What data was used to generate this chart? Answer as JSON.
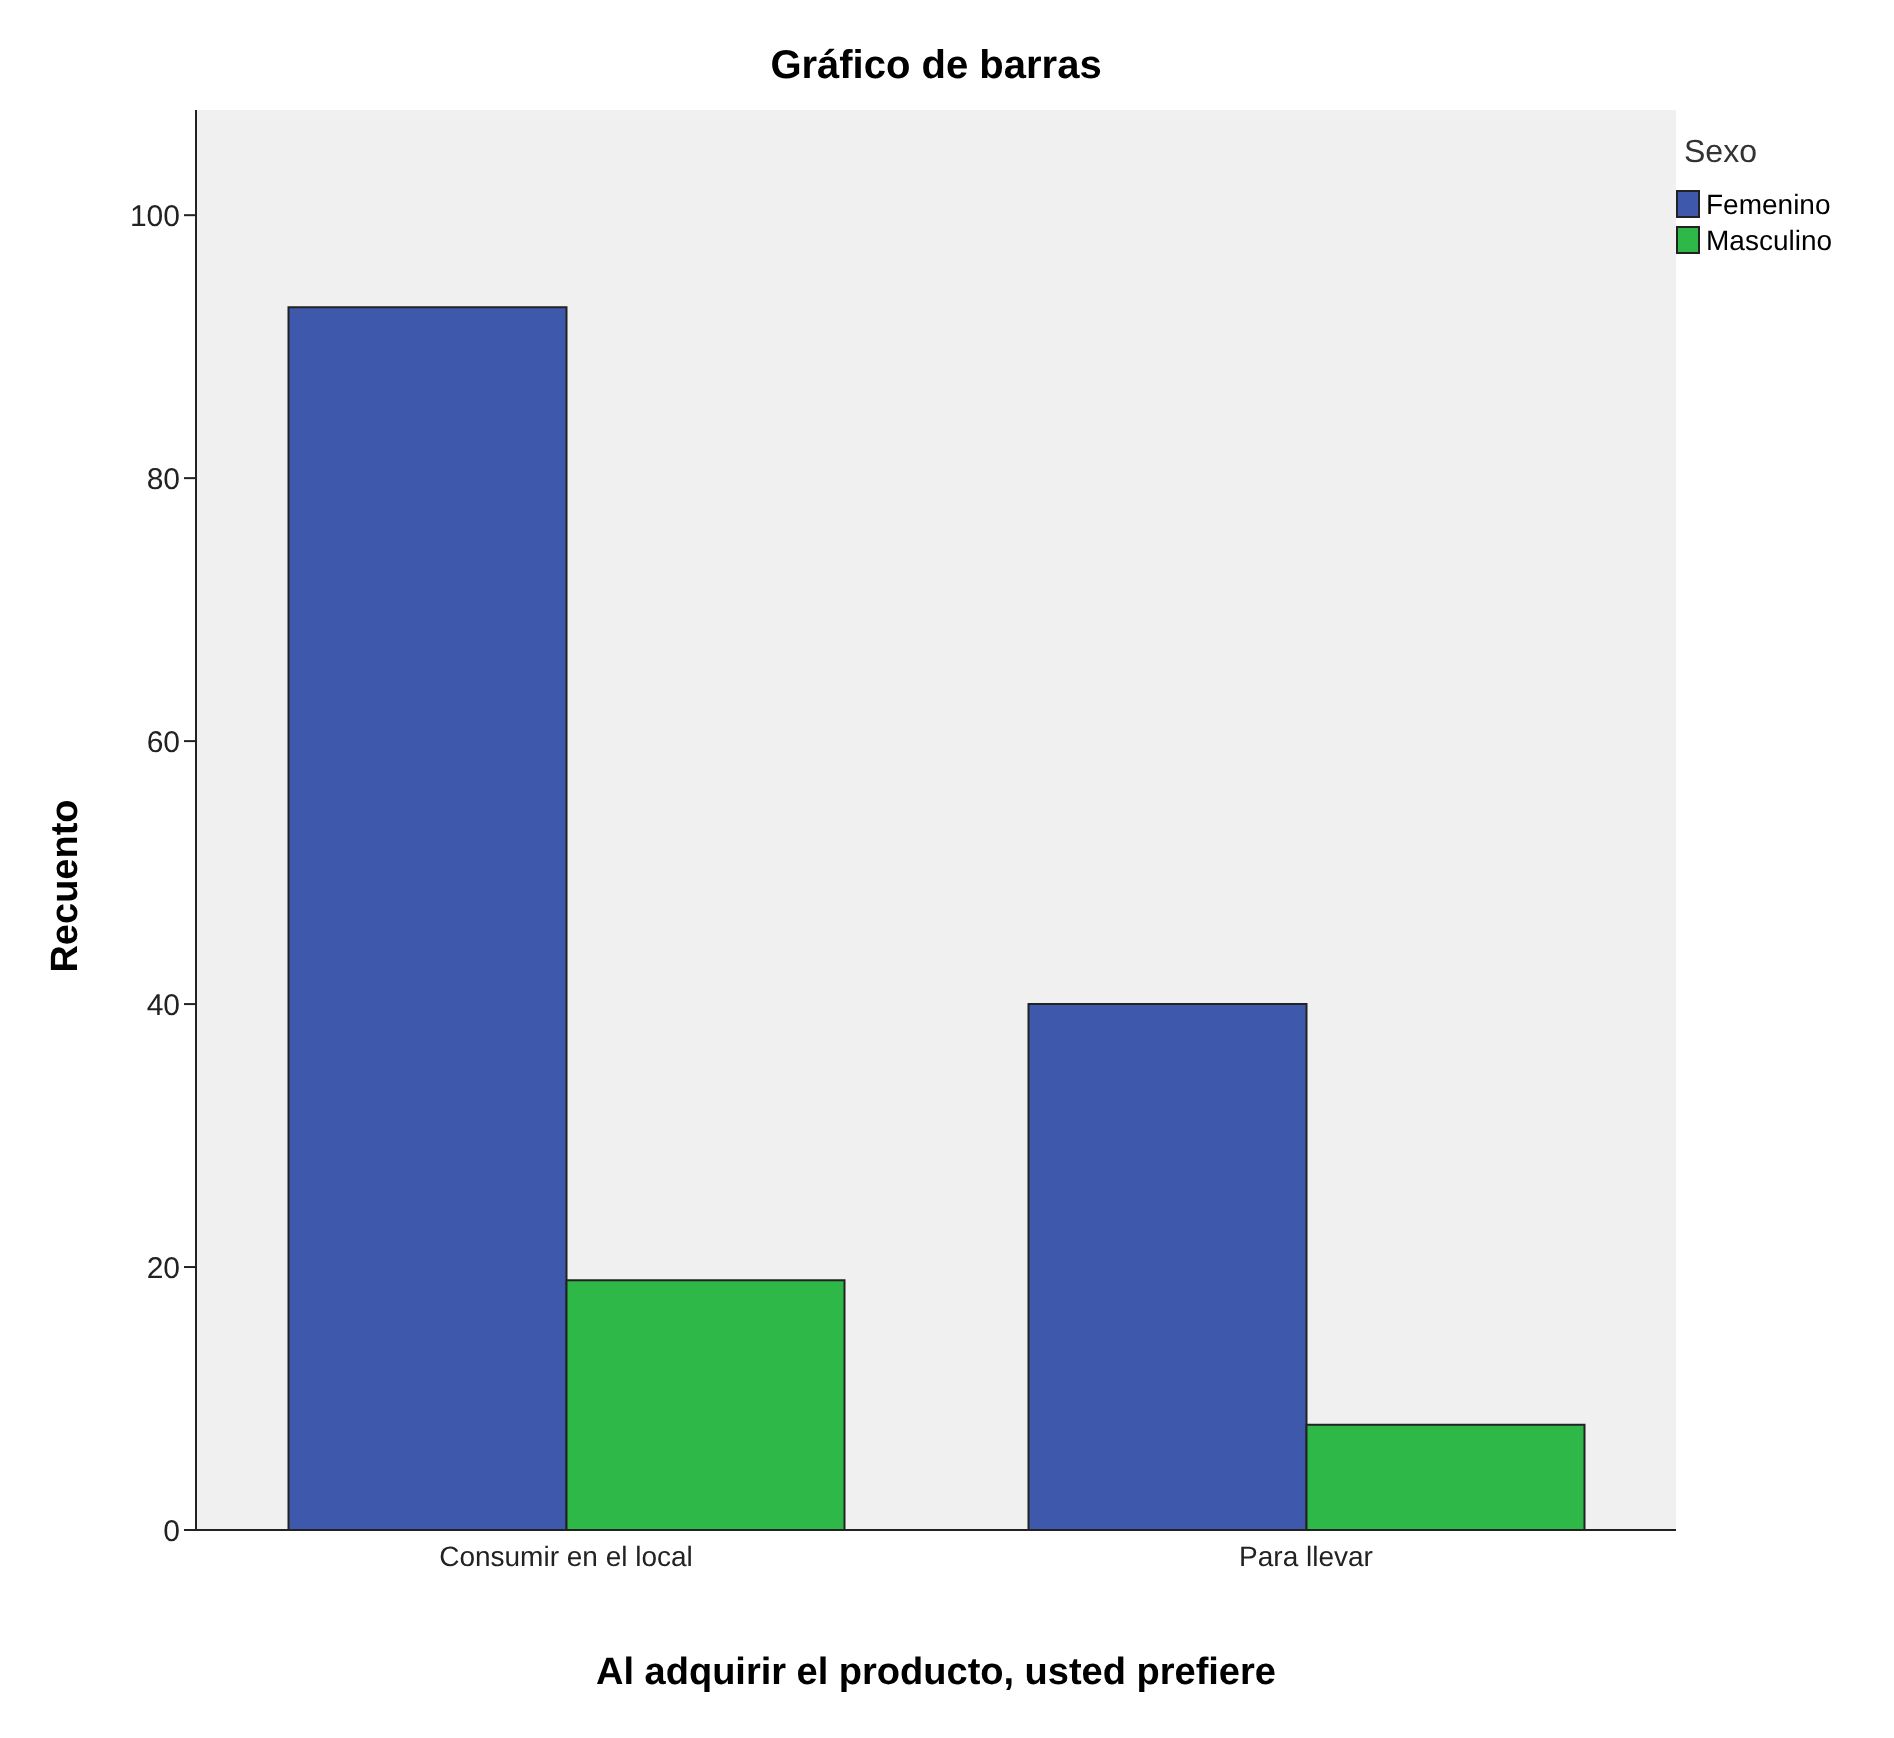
{
  "chart_data": {
    "type": "bar",
    "title": "Gráfico de barras",
    "xlabel": "Al adquirir el producto, usted prefiere",
    "ylabel": "Recuento",
    "legend_title": "Sexo",
    "categories": [
      "Consumir en el local",
      "Para llevar"
    ],
    "series": [
      {
        "name": "Femenino",
        "color": "#3e58ac",
        "values": [
          93,
          40
        ]
      },
      {
        "name": "Masculino",
        "color": "#2eb848",
        "values": [
          19,
          8
        ]
      }
    ],
    "ylim": [
      0,
      108
    ],
    "yticks": [
      0,
      20,
      40,
      60,
      80,
      100
    ],
    "grid": false,
    "legend": "top right"
  }
}
